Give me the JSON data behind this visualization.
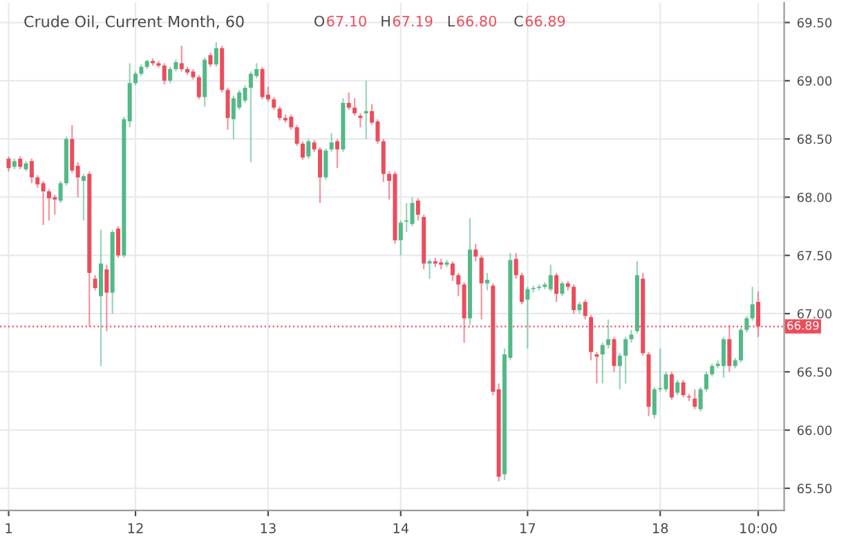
{
  "chart_data": {
    "type": "candlestick",
    "title": "Crude Oil, Current Month, 60",
    "annotations": [
      "O67.10",
      "H67.19",
      "L66.80",
      "C66.89"
    ],
    "categories": [
      "1",
      null,
      null,
      null,
      null,
      null,
      null,
      null,
      null,
      null,
      null,
      null,
      null,
      null,
      null,
      null,
      null,
      null,
      null,
      null,
      null,
      null,
      "12",
      null,
      null,
      null,
      null,
      null,
      null,
      null,
      null,
      null,
      null,
      null,
      null,
      null,
      null,
      null,
      null,
      null,
      null,
      null,
      null,
      null,
      null,
      "13",
      null,
      null,
      null,
      null,
      null,
      null,
      null,
      null,
      null,
      null,
      null,
      null,
      null,
      null,
      null,
      null,
      null,
      null,
      null,
      null,
      null,
      null,
      "14",
      null,
      null,
      null,
      null,
      null,
      null,
      null,
      null,
      null,
      null,
      null,
      null,
      null,
      null,
      null,
      null,
      null,
      null,
      null,
      null,
      null,
      "17",
      null,
      null,
      null,
      null,
      null,
      null,
      null,
      null,
      null,
      null,
      null,
      null,
      null,
      null,
      null,
      null,
      null,
      null,
      null,
      null,
      null,
      null,
      "18",
      null,
      null,
      null,
      null,
      null,
      null,
      null,
      null,
      null,
      null,
      null,
      null,
      null,
      null,
      null,
      null,
      "10:00"
    ],
    "ohlc": [
      [
        68.33,
        68.35,
        68.22,
        68.25
      ],
      [
        68.26,
        68.33,
        68.24,
        68.31
      ],
      [
        68.33,
        68.35,
        68.24,
        68.26
      ],
      [
        68.24,
        68.31,
        68.22,
        68.29
      ],
      [
        68.31,
        68.33,
        68.12,
        68.17
      ],
      [
        68.17,
        68.19,
        68.08,
        68.11
      ],
      [
        68.12,
        68.14,
        67.76,
        68.05
      ],
      [
        68.05,
        68.07,
        67.8,
        67.99
      ],
      [
        68.0,
        68.02,
        67.85,
        67.98
      ],
      [
        67.97,
        68.14,
        67.95,
        68.12
      ],
      [
        68.12,
        68.52,
        68.1,
        68.5
      ],
      [
        68.5,
        68.62,
        68.21,
        68.23
      ],
      [
        68.27,
        68.3,
        68.0,
        68.17
      ],
      [
        68.14,
        68.2,
        67.8,
        68.18
      ],
      [
        68.2,
        68.22,
        66.89,
        67.35
      ],
      [
        67.3,
        67.33,
        67.2,
        67.22
      ],
      [
        67.15,
        67.72,
        66.55,
        67.43
      ],
      [
        67.38,
        67.42,
        66.85,
        67.18
      ],
      [
        67.18,
        67.72,
        67.0,
        67.7
      ],
      [
        67.73,
        67.75,
        67.48,
        67.5
      ],
      [
        67.5,
        68.69,
        67.48,
        68.67
      ],
      [
        68.65,
        69.15,
        68.6,
        68.98
      ],
      [
        68.98,
        69.08,
        68.96,
        69.06
      ],
      [
        69.06,
        69.14,
        69.04,
        69.12
      ],
      [
        69.12,
        69.18,
        69.1,
        69.17
      ],
      [
        69.17,
        69.19,
        69.13,
        69.15
      ],
      [
        69.15,
        69.17,
        69.11,
        69.13
      ],
      [
        69.13,
        69.15,
        68.97,
        69.0
      ],
      [
        69.0,
        69.12,
        68.98,
        69.1
      ],
      [
        69.1,
        69.18,
        69.08,
        69.16
      ],
      [
        69.15,
        69.3,
        69.08,
        69.1
      ],
      [
        69.1,
        69.12,
        69.05,
        69.07
      ],
      [
        69.08,
        69.1,
        69.01,
        69.03
      ],
      [
        69.03,
        69.05,
        68.84,
        68.86
      ],
      [
        68.86,
        69.2,
        68.78,
        69.18
      ],
      [
        69.22,
        69.24,
        69.12,
        69.14
      ],
      [
        69.14,
        69.33,
        69.12,
        69.28
      ],
      [
        69.28,
        69.3,
        68.9,
        68.92
      ],
      [
        68.92,
        68.94,
        68.58,
        68.68
      ],
      [
        68.67,
        68.87,
        68.5,
        68.85
      ],
      [
        68.77,
        68.92,
        68.75,
        68.9
      ],
      [
        68.83,
        68.96,
        68.81,
        68.94
      ],
      [
        68.94,
        69.08,
        68.3,
        69.06
      ],
      [
        69.04,
        69.15,
        69.02,
        69.1
      ],
      [
        69.1,
        69.12,
        68.84,
        68.86
      ],
      [
        68.88,
        68.95,
        68.82,
        68.84
      ],
      [
        68.84,
        68.86,
        68.75,
        68.77
      ],
      [
        68.76,
        68.78,
        68.66,
        68.68
      ],
      [
        68.68,
        68.71,
        68.64,
        68.66
      ],
      [
        68.69,
        68.71,
        68.58,
        68.6
      ],
      [
        68.6,
        68.62,
        68.44,
        68.46
      ],
      [
        68.46,
        68.48,
        68.32,
        68.34
      ],
      [
        68.35,
        68.5,
        68.33,
        68.48
      ],
      [
        68.47,
        68.49,
        68.39,
        68.41
      ],
      [
        68.41,
        68.43,
        67.95,
        68.17
      ],
      [
        68.17,
        68.42,
        68.15,
        68.4
      ],
      [
        68.41,
        68.55,
        68.39,
        68.47
      ],
      [
        68.48,
        68.5,
        68.25,
        68.41
      ],
      [
        68.41,
        68.85,
        68.39,
        68.81
      ],
      [
        68.81,
        68.9,
        68.75,
        68.77
      ],
      [
        68.77,
        68.85,
        68.7,
        68.72
      ],
      [
        68.7,
        68.72,
        68.6,
        68.68
      ],
      [
        68.72,
        69.0,
        68.5,
        68.74
      ],
      [
        68.74,
        68.8,
        68.62,
        68.64
      ],
      [
        68.65,
        68.67,
        68.46,
        68.48
      ],
      [
        68.48,
        68.5,
        68.13,
        68.2
      ],
      [
        68.2,
        68.22,
        67.98,
        68.14
      ],
      [
        68.2,
        68.22,
        67.6,
        67.63
      ],
      [
        67.63,
        67.8,
        67.5,
        67.78
      ],
      [
        67.79,
        67.95,
        67.7,
        67.8
      ],
      [
        67.77,
        68.0,
        67.75,
        67.95
      ],
      [
        67.97,
        67.99,
        67.8,
        67.85
      ],
      [
        67.83,
        67.85,
        67.38,
        67.43
      ],
      [
        67.43,
        67.47,
        67.3,
        67.45
      ],
      [
        67.45,
        67.48,
        67.4,
        67.43
      ],
      [
        67.44,
        67.47,
        67.38,
        67.42
      ],
      [
        67.42,
        67.46,
        67.4,
        67.44
      ],
      [
        67.43,
        67.45,
        67.28,
        67.33
      ],
      [
        67.33,
        67.35,
        67.15,
        67.25
      ],
      [
        67.25,
        67.27,
        66.75,
        66.96
      ],
      [
        66.96,
        67.82,
        66.9,
        67.55
      ],
      [
        67.55,
        67.6,
        67.45,
        67.49
      ],
      [
        67.48,
        67.5,
        66.95,
        67.26
      ],
      [
        67.26,
        67.35,
        67.2,
        67.29
      ],
      [
        67.24,
        67.26,
        66.3,
        66.33
      ],
      [
        66.35,
        66.4,
        65.56,
        65.6
      ],
      [
        65.62,
        66.7,
        65.57,
        66.65
      ],
      [
        66.62,
        67.52,
        66.6,
        67.46
      ],
      [
        67.47,
        67.52,
        67.3,
        67.33
      ],
      [
        67.33,
        67.35,
        67.08,
        67.1
      ],
      [
        67.12,
        67.23,
        66.7,
        67.21
      ],
      [
        67.21,
        67.24,
        67.18,
        67.22
      ],
      [
        67.22,
        67.25,
        67.2,
        67.23
      ],
      [
        67.23,
        67.27,
        67.21,
        67.25
      ],
      [
        67.21,
        67.42,
        67.19,
        67.33
      ],
      [
        67.33,
        67.35,
        67.1,
        67.17
      ],
      [
        67.17,
        67.28,
        67.15,
        67.26
      ],
      [
        67.26,
        67.28,
        67.2,
        67.23
      ],
      [
        67.23,
        67.25,
        67.0,
        67.03
      ],
      [
        67.03,
        67.1,
        67.0,
        67.08
      ],
      [
        67.1,
        67.12,
        66.95,
        66.98
      ],
      [
        66.97,
        66.99,
        66.6,
        66.67
      ],
      [
        66.65,
        66.67,
        66.4,
        66.63
      ],
      [
        66.65,
        66.75,
        66.4,
        66.73
      ],
      [
        66.73,
        66.95,
        66.7,
        66.78
      ],
      [
        66.78,
        66.8,
        66.5,
        66.55
      ],
      [
        66.55,
        66.66,
        66.35,
        66.64
      ],
      [
        66.64,
        66.8,
        66.4,
        66.78
      ],
      [
        66.78,
        66.86,
        66.75,
        66.82
      ],
      [
        66.85,
        67.45,
        66.83,
        67.33
      ],
      [
        67.3,
        67.35,
        66.64,
        66.66
      ],
      [
        66.65,
        66.67,
        66.12,
        66.2
      ],
      [
        66.13,
        66.37,
        66.1,
        66.35
      ],
      [
        66.35,
        66.7,
        66.33,
        66.36
      ],
      [
        66.35,
        66.5,
        66.33,
        66.48
      ],
      [
        66.48,
        66.5,
        66.26,
        66.28
      ],
      [
        66.32,
        66.43,
        66.3,
        66.41
      ],
      [
        66.41,
        66.43,
        66.28,
        66.3
      ],
      [
        66.29,
        66.31,
        66.25,
        66.28
      ],
      [
        66.27,
        66.35,
        66.18,
        66.2
      ],
      [
        66.18,
        66.37,
        66.16,
        66.35
      ],
      [
        66.35,
        66.5,
        66.33,
        66.48
      ],
      [
        66.48,
        66.57,
        66.46,
        66.55
      ],
      [
        66.55,
        66.6,
        66.53,
        66.57
      ],
      [
        66.55,
        66.8,
        66.45,
        66.78
      ],
      [
        66.78,
        66.9,
        66.5,
        66.55
      ],
      [
        66.55,
        66.62,
        66.53,
        66.6
      ],
      [
        66.6,
        66.88,
        66.58,
        66.86
      ],
      [
        66.86,
        66.98,
        66.84,
        66.96
      ],
      [
        66.96,
        67.23,
        66.94,
        67.08
      ],
      [
        67.1,
        67.19,
        66.8,
        66.89
      ]
    ],
    "colors": [
      "#eb4d5c",
      "#53b987",
      "#eb4d5c",
      "#53b987",
      "#eb4d5c",
      "#eb4d5c",
      "#eb4d5c",
      "#eb4d5c",
      "#eb4d5c",
      "#53b987",
      "#53b987",
      "#eb4d5c",
      "#eb4d5c",
      "#53b987",
      "#eb4d5c",
      "#eb4d5c",
      "#53b987",
      "#eb4d5c",
      "#53b987",
      "#eb4d5c",
      "#53b987",
      "#53b987",
      "#53b987",
      "#53b987",
      "#53b987",
      "#eb4d5c",
      "#eb4d5c",
      "#eb4d5c",
      "#53b987",
      "#53b987",
      "#eb4d5c",
      "#eb4d5c",
      "#eb4d5c",
      "#eb4d5c",
      "#53b987",
      "#eb4d5c",
      "#53b987",
      "#eb4d5c",
      "#eb4d5c",
      "#53b987",
      "#53b987",
      "#53b987",
      "#53b987",
      "#53b987",
      "#eb4d5c",
      "#eb4d5c",
      "#eb4d5c",
      "#eb4d5c",
      "#eb4d5c",
      "#eb4d5c",
      "#eb4d5c",
      "#eb4d5c",
      "#53b987",
      "#eb4d5c",
      "#eb4d5c",
      "#53b987",
      "#53b987",
      "#eb4d5c",
      "#53b987",
      "#eb4d5c",
      "#eb4d5c",
      "#eb4d5c",
      "#53b987",
      "#eb4d5c",
      "#eb4d5c",
      "#eb4d5c",
      "#eb4d5c",
      "#eb4d5c",
      "#53b987",
      "#53b987",
      "#53b987",
      "#eb4d5c",
      "#eb4d5c",
      "#53b987",
      "#eb4d5c",
      "#eb4d5c",
      "#53b987",
      "#eb4d5c",
      "#eb4d5c",
      "#eb4d5c",
      "#53b987",
      "#eb4d5c",
      "#eb4d5c",
      "#53b987",
      "#eb4d5c",
      "#eb4d5c",
      "#53b987",
      "#53b987",
      "#eb4d5c",
      "#eb4d5c",
      "#53b987",
      "#53b987",
      "#53b987",
      "#53b987",
      "#53b987",
      "#eb4d5c",
      "#53b987",
      "#eb4d5c",
      "#eb4d5c",
      "#53b987",
      "#eb4d5c",
      "#eb4d5c",
      "#eb4d5c",
      "#53b987",
      "#53b987",
      "#eb4d5c",
      "#53b987",
      "#53b987",
      "#53b987",
      "#53b987",
      "#eb4d5c",
      "#eb4d5c",
      "#53b987",
      "#53b987",
      "#53b987",
      "#eb4d5c",
      "#53b987",
      "#eb4d5c",
      "#eb4d5c",
      "#eb4d5c",
      "#53b987",
      "#53b987",
      "#53b987",
      "#53b987",
      "#53b987",
      "#eb4d5c",
      "#53b987",
      "#53b987",
      "#53b987",
      "#53b987",
      "#eb4d5c"
    ],
    "ylim": [
      65.31,
      69.67
    ],
    "yticks": [
      {
        "value": 65.5,
        "label": "65.50"
      },
      {
        "value": 66.0,
        "label": "66.00"
      },
      {
        "value": 66.5,
        "label": "66.50"
      },
      {
        "value": 67.0,
        "label": "67.00"
      },
      {
        "value": 67.5,
        "label": "67.50"
      },
      {
        "value": 68.0,
        "label": "68.00"
      },
      {
        "value": 68.5,
        "label": "68.50"
      },
      {
        "value": 69.0,
        "label": "69.00"
      },
      {
        "value": 69.5,
        "label": "69.50"
      }
    ],
    "ref_lines": [
      {
        "axis": "y",
        "value": 66.89,
        "label": "66.89",
        "color": "#eb4d5c",
        "line_style": "dotted"
      }
    ],
    "grid": true
  }
}
